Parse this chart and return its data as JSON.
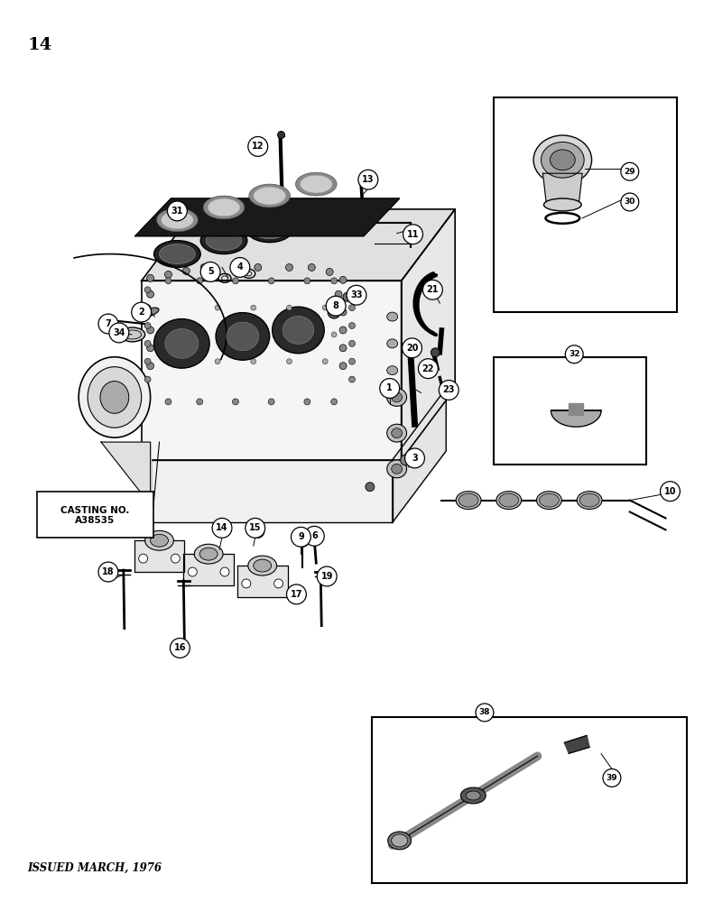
{
  "page_number": "14",
  "footer_text": "ISSUED MARCH, 1976",
  "background_color": "#ffffff",
  "line_color": "#000000",
  "casting_label": "CASTING NO.\nA38535",
  "fig_width": 7.8,
  "fig_height": 10.0,
  "dpi": 100
}
